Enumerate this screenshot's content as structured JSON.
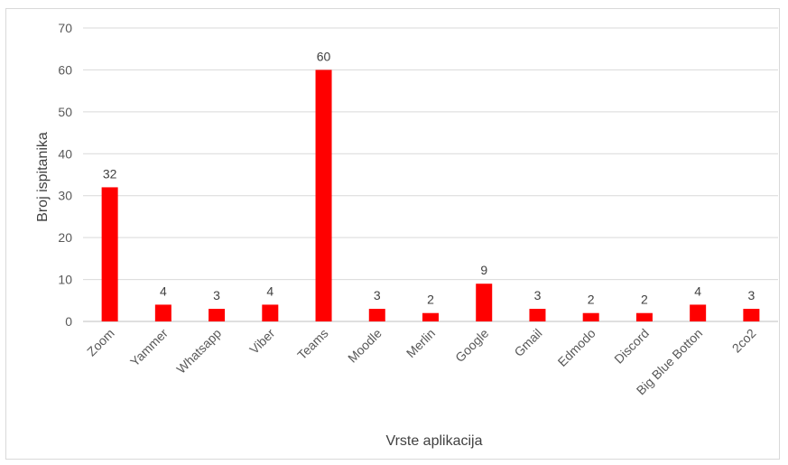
{
  "chart_data": {
    "type": "bar",
    "title": "",
    "xlabel": "Vrste aplikacija",
    "ylabel": "Broj ispitanika",
    "categories": [
      "Zoom",
      "Yammer",
      "Whatsapp",
      "Viber",
      "Teams",
      "Moodle",
      "Merlin",
      "Google",
      "Gmail",
      "Edmodo",
      "Discord",
      "Big Blue Botton",
      "2co2"
    ],
    "values": [
      32,
      4,
      3,
      4,
      60,
      3,
      2,
      9,
      3,
      2,
      2,
      4,
      3
    ],
    "ylim": [
      0,
      70
    ],
    "yticks": [
      0,
      10,
      20,
      30,
      40,
      50,
      60,
      70
    ],
    "grid": true,
    "legend": "none",
    "bar_color": "#ff0000",
    "data_labels": true
  }
}
